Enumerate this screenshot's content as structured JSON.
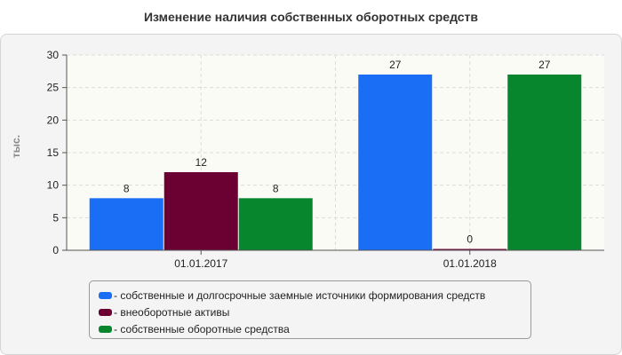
{
  "chart_data": {
    "type": "bar",
    "title": "Изменение наличия собственных оборотных средств",
    "ylabel": "тыс.",
    "xlabel": "",
    "ylim": [
      0,
      30
    ],
    "yticks": [
      0,
      5,
      10,
      15,
      20,
      25,
      30
    ],
    "grid": true,
    "legend_position": "bottom",
    "categories": [
      "01.01.2017",
      "01.01.2018"
    ],
    "series": [
      {
        "name": "собственные и долгосрочные заемные источники формирования средств",
        "color": "#1a6ef5",
        "values": [
          8,
          27
        ]
      },
      {
        "name": "внеоборотные активы",
        "color": "#6b0032",
        "values": [
          12,
          0
        ]
      },
      {
        "name": "собственные оборотные средства",
        "color": "#08862e",
        "values": [
          8,
          27
        ]
      }
    ]
  },
  "legend": {
    "prefix": "- "
  },
  "colors": {
    "plot_background": "#fbfbf6",
    "panel_background": "#f4f4f4",
    "grid": "#dcdcdc"
  }
}
